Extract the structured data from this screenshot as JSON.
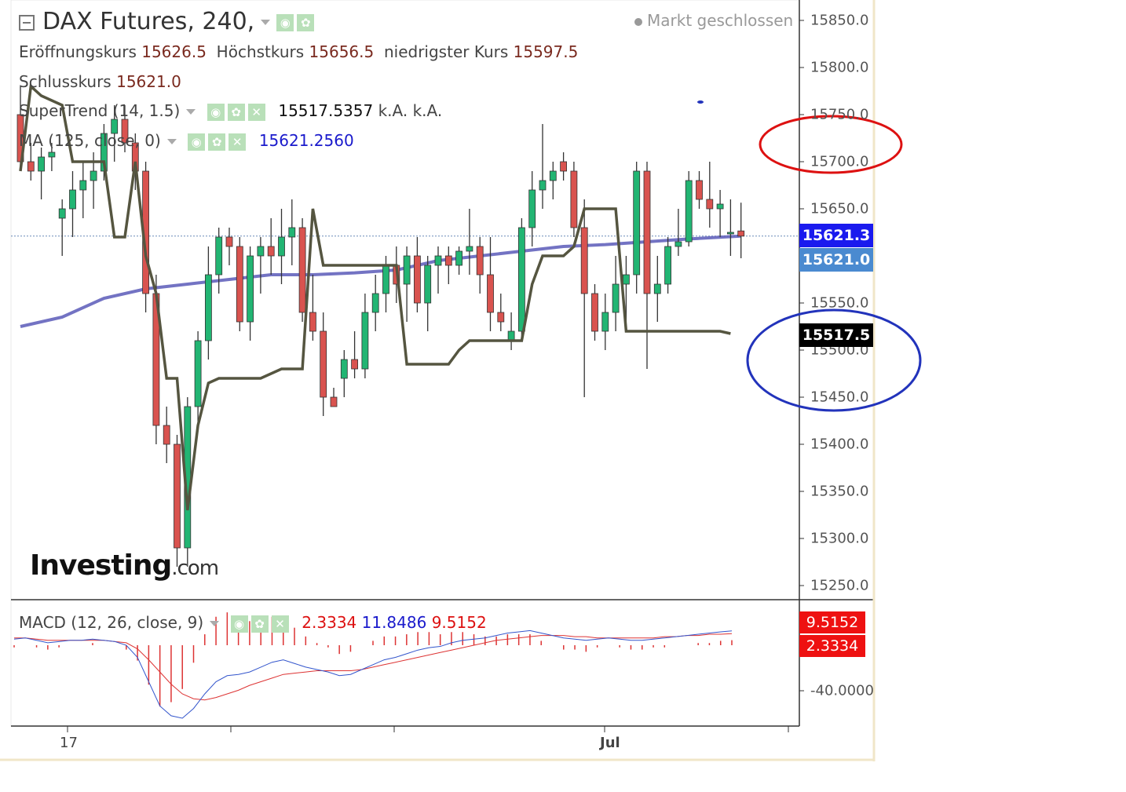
{
  "header": {
    "title": "DAX Futures, 240,",
    "market_status": "Markt geschlossen",
    "open_label": "Eröffnungskurs",
    "open_value": "15626.5",
    "high_label": "Höchstkurs",
    "high_value": "15656.5",
    "low_label": "niedrigster Kurs",
    "low_value": "15597.5",
    "close_label": "Schlusskurs",
    "close_value": "15621.0"
  },
  "indicators": {
    "supertrend_label": "SuperTrend (14, 1.5)",
    "supertrend_value": "15517.5357",
    "supertrend_extra1": "k.A.",
    "supertrend_extra2": "k.A.",
    "ma_label": "MA (125, close, 0)",
    "ma_value": "15621.2560",
    "macd_label": "MACD (12, 26, close, 9)",
    "macd_hist_value": "2.3334",
    "macd_value": "11.8486",
    "macd_signal_value": "9.5152"
  },
  "price_tags": {
    "ma_tag": "15621.3",
    "last_tag": "15621.0",
    "supertrend_tag": "15517.5",
    "macd_signal_tag": "9.5152",
    "macd_hist_tag": "2.3334"
  },
  "logo": {
    "main": "Investing",
    "suffix": ".com"
  },
  "colors": {
    "up": "#22b573",
    "down": "#d9534f",
    "ma": "#5a5ab8",
    "supertrend": "#555540",
    "macd": "#3355cc",
    "signal": "#dd3333",
    "circle_red": "#dd1111",
    "circle_blue": "#2233bb",
    "ma_tag": "#1a1aee",
    "last_tag": "#3b82c8",
    "st_tag": "#000000",
    "macd_tag": "#ee1111"
  },
  "chart_data": {
    "type": "candlestick",
    "ylim": [
      15220,
      15870
    ],
    "y_ticks": [
      "15850.0",
      "15800.0",
      "15750.0",
      "15700.0",
      "15650.0",
      "15550.0",
      "15500.0",
      "15450.0",
      "15400.0",
      "15350.0",
      "15300.0",
      "15250.0"
    ],
    "x_ticks": [
      "17",
      "Jul"
    ],
    "macd_tick": "-40.0000",
    "candles": [
      [
        15750,
        15780,
        15690,
        15700
      ],
      [
        15700,
        15720,
        15680,
        15690
      ],
      [
        15690,
        15715,
        15660,
        15705
      ],
      [
        15705,
        15720,
        15690,
        15710
      ],
      [
        15640,
        15660,
        15600,
        15650
      ],
      [
        15650,
        15690,
        15620,
        15670
      ],
      [
        15670,
        15700,
        15640,
        15680
      ],
      [
        15680,
        15710,
        15650,
        15690
      ],
      [
        15690,
        15740,
        15680,
        15730
      ],
      [
        15730,
        15760,
        15700,
        15745
      ],
      [
        15745,
        15760,
        15710,
        15720
      ],
      [
        15720,
        15730,
        15670,
        15690
      ],
      [
        15690,
        15700,
        15540,
        15560
      ],
      [
        15560,
        15580,
        15400,
        15420
      ],
      [
        15420,
        15440,
        15380,
        15400
      ],
      [
        15400,
        15410,
        15270,
        15290
      ],
      [
        15290,
        15450,
        15270,
        15440
      ],
      [
        15440,
        15520,
        15420,
        15510
      ],
      [
        15510,
        15610,
        15490,
        15580
      ],
      [
        15580,
        15630,
        15560,
        15620
      ],
      [
        15620,
        15630,
        15590,
        15610
      ],
      [
        15610,
        15620,
        15520,
        15530
      ],
      [
        15530,
        15610,
        15510,
        15600
      ],
      [
        15600,
        15620,
        15560,
        15610
      ],
      [
        15610,
        15640,
        15580,
        15600
      ],
      [
        15600,
        15650,
        15570,
        15620
      ],
      [
        15620,
        15660,
        15590,
        15630
      ],
      [
        15630,
        15640,
        15530,
        15540
      ],
      [
        15540,
        15580,
        15510,
        15520
      ],
      [
        15520,
        15540,
        15430,
        15450
      ],
      [
        15450,
        15460,
        15440,
        15440
      ],
      [
        15470,
        15500,
        15450,
        15490
      ],
      [
        15490,
        15520,
        15470,
        15480
      ],
      [
        15480,
        15560,
        15470,
        15540
      ],
      [
        15540,
        15580,
        15520,
        15560
      ],
      [
        15560,
        15600,
        15540,
        15590
      ],
      [
        15590,
        15610,
        15550,
        15570
      ],
      [
        15570,
        15610,
        15530,
        15600
      ],
      [
        15600,
        15620,
        15540,
        15550
      ],
      [
        15550,
        15600,
        15520,
        15590
      ],
      [
        15590,
        15610,
        15560,
        15600
      ],
      [
        15600,
        15610,
        15570,
        15590
      ],
      [
        15590,
        15610,
        15580,
        15605
      ],
      [
        15605,
        15650,
        15580,
        15610
      ],
      [
        15610,
        15620,
        15560,
        15580
      ],
      [
        15580,
        15620,
        15520,
        15540
      ],
      [
        15540,
        15560,
        15520,
        15530
      ],
      [
        15510,
        15540,
        15500,
        15520
      ],
      [
        15520,
        15640,
        15510,
        15630
      ],
      [
        15630,
        15690,
        15610,
        15670
      ],
      [
        15670,
        15740,
        15650,
        15680
      ],
      [
        15680,
        15700,
        15660,
        15690
      ],
      [
        15700,
        15710,
        15680,
        15690
      ],
      [
        15690,
        15700,
        15620,
        15630
      ],
      [
        15630,
        15660,
        15450,
        15560
      ],
      [
        15560,
        15570,
        15510,
        15520
      ],
      [
        15520,
        15560,
        15500,
        15540
      ],
      [
        15540,
        15600,
        15520,
        15570
      ],
      [
        15570,
        15600,
        15530,
        15580
      ],
      [
        15580,
        15700,
        15560,
        15690
      ],
      [
        15690,
        15700,
        15480,
        15560
      ],
      [
        15560,
        15600,
        15530,
        15570
      ],
      [
        15570,
        15620,
        15560,
        15610
      ],
      [
        15610,
        15650,
        15600,
        15615
      ],
      [
        15615,
        15690,
        15610,
        15680
      ],
      [
        15680,
        15690,
        15650,
        15660
      ],
      [
        15660,
        15700,
        15630,
        15650
      ],
      [
        15650,
        15670,
        15620,
        15655
      ],
      [
        15625,
        15660,
        15600,
        15625
      ],
      [
        15626.5,
        15656.5,
        15597.5,
        15621
      ]
    ],
    "ma_line": [
      [
        0,
        15525
      ],
      [
        4,
        15535
      ],
      [
        8,
        15555
      ],
      [
        12,
        15565
      ],
      [
        16,
        15570
      ],
      [
        20,
        15575
      ],
      [
        24,
        15580
      ],
      [
        28,
        15580
      ],
      [
        32,
        15582
      ],
      [
        36,
        15585
      ],
      [
        40,
        15595
      ],
      [
        44,
        15600
      ],
      [
        48,
        15605
      ],
      [
        52,
        15610
      ],
      [
        56,
        15612
      ],
      [
        60,
        15615
      ],
      [
        64,
        15618
      ],
      [
        69,
        15621
      ]
    ],
    "supertrend_line": [
      [
        0,
        15690
      ],
      [
        1,
        15780
      ],
      [
        2,
        15770
      ],
      [
        3,
        15765
      ],
      [
        4,
        15760
      ],
      [
        5,
        15700
      ],
      [
        6,
        15700
      ],
      [
        7,
        15700
      ],
      [
        8,
        15700
      ],
      [
        9,
        15620
      ],
      [
        10,
        15620
      ],
      [
        11,
        15700
      ],
      [
        12,
        15600
      ],
      [
        13,
        15560
      ],
      [
        14,
        15470
      ],
      [
        15,
        15470
      ],
      [
        16,
        15330
      ],
      [
        17,
        15420
      ],
      [
        18,
        15465
      ],
      [
        19,
        15470
      ],
      [
        20,
        15470
      ],
      [
        21,
        15470
      ],
      [
        22,
        15470
      ],
      [
        23,
        15470
      ],
      [
        24,
        15475
      ],
      [
        25,
        15480
      ],
      [
        26,
        15480
      ],
      [
        27,
        15480
      ],
      [
        28,
        15650
      ],
      [
        29,
        15590
      ],
      [
        30,
        15590
      ],
      [
        31,
        15590
      ],
      [
        32,
        15590
      ],
      [
        33,
        15590
      ],
      [
        34,
        15590
      ],
      [
        35,
        15590
      ],
      [
        36,
        15590
      ],
      [
        37,
        15485
      ],
      [
        38,
        15485
      ],
      [
        39,
        15485
      ],
      [
        40,
        15485
      ],
      [
        41,
        15485
      ],
      [
        42,
        15500
      ],
      [
        43,
        15510
      ],
      [
        44,
        15510
      ],
      [
        45,
        15510
      ],
      [
        46,
        15510
      ],
      [
        47,
        15510
      ],
      [
        48,
        15510
      ],
      [
        49,
        15570
      ],
      [
        50,
        15600
      ],
      [
        51,
        15600
      ],
      [
        52,
        15600
      ],
      [
        53,
        15610
      ],
      [
        54,
        15650
      ],
      [
        55,
        15650
      ],
      [
        56,
        15650
      ],
      [
        57,
        15650
      ],
      [
        58,
        15520
      ],
      [
        59,
        15520
      ],
      [
        60,
        15520
      ],
      [
        61,
        15520
      ],
      [
        62,
        15520
      ],
      [
        63,
        15520
      ],
      [
        64,
        15520
      ],
      [
        65,
        15520
      ],
      [
        66,
        15520
      ],
      [
        67,
        15520
      ],
      [
        68,
        15517.5
      ]
    ],
    "macd_line": [
      5,
      6,
      4,
      2,
      3,
      4,
      4,
      5,
      4,
      3,
      0,
      -10,
      -30,
      -50,
      -58,
      -60,
      -52,
      -40,
      -30,
      -25,
      -24,
      -22,
      -18,
      -14,
      -12,
      -15,
      -18,
      -20,
      -22,
      -25,
      -24,
      -20,
      -16,
      -12,
      -10,
      -7,
      -4,
      -2,
      -1,
      2,
      4,
      5,
      6,
      8,
      10,
      11,
      12,
      10,
      8,
      6,
      5,
      4,
      5,
      6,
      5,
      4,
      4,
      5,
      6,
      7,
      8,
      9,
      10,
      11,
      11.8
    ],
    "macd_signal": [
      6,
      6,
      5,
      4,
      4,
      4,
      4,
      4,
      4,
      3,
      2,
      -3,
      -12,
      -22,
      -32,
      -40,
      -44,
      -45,
      -43,
      -40,
      -37,
      -33,
      -30,
      -27,
      -24,
      -23,
      -22,
      -21,
      -21,
      -21,
      -21,
      -20,
      -18,
      -16,
      -14,
      -12,
      -10,
      -8,
      -6,
      -4,
      -2,
      0,
      2,
      4,
      5,
      6,
      7,
      8,
      8,
      8,
      7,
      7,
      6,
      6,
      6,
      6,
      6,
      6,
      7,
      7,
      8,
      8,
      9,
      9,
      9.5
    ]
  }
}
